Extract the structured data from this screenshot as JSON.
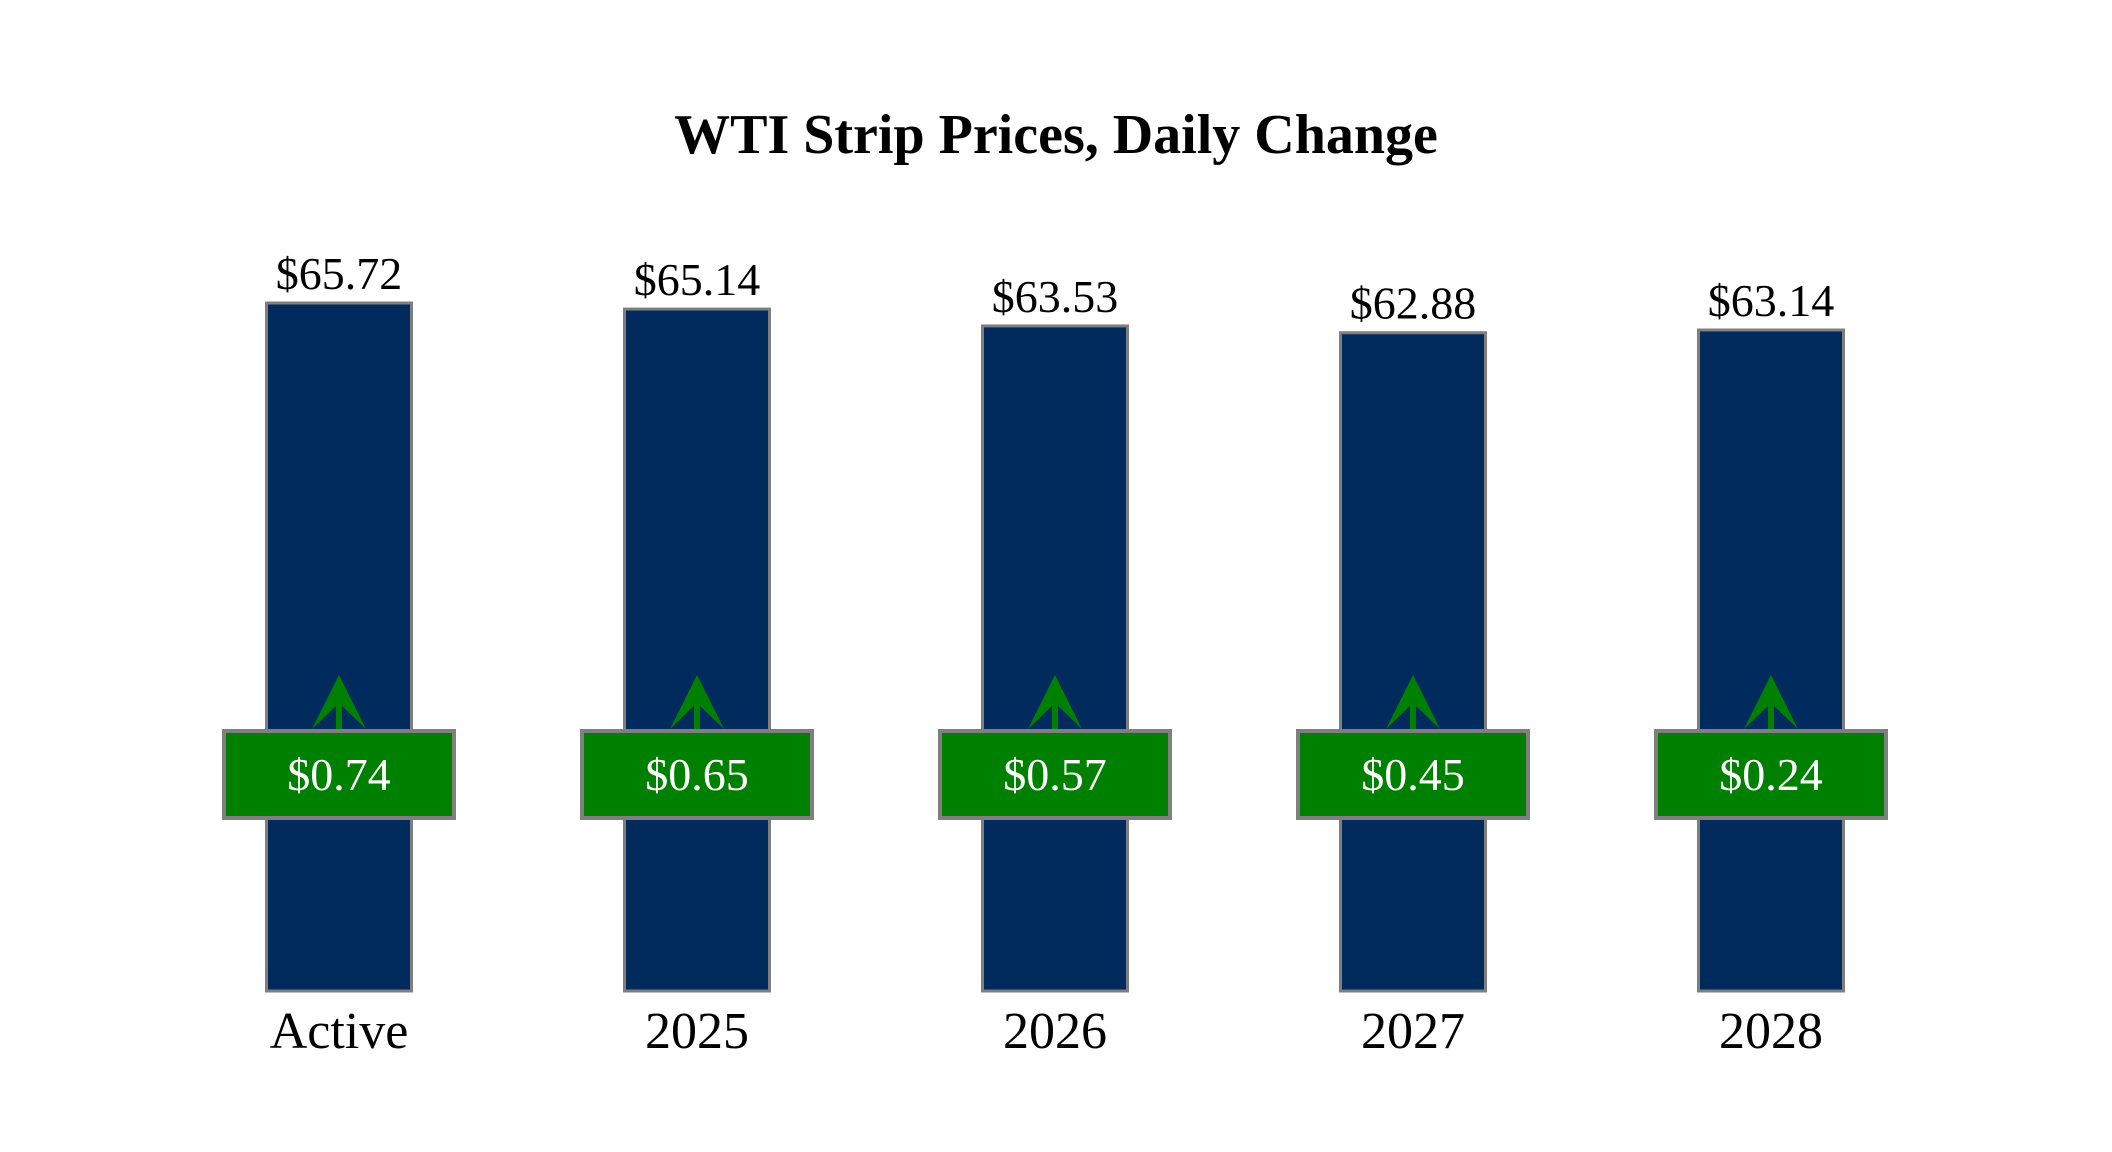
{
  "chart_data": {
    "type": "bar",
    "title": "WTI Strip Prices, Daily Change",
    "categories": [
      "Active",
      "2025",
      "2026",
      "2027",
      "2028"
    ],
    "values": [
      65.72,
      65.14,
      63.53,
      62.88,
      63.14
    ],
    "value_labels": [
      "$65.72",
      "$65.14",
      "$63.53",
      "$62.88",
      "$63.14"
    ],
    "changes": [
      0.74,
      0.65,
      0.57,
      0.45,
      0.24
    ],
    "change_labels": [
      "$0.74",
      "$0.65",
      "$0.57",
      "$0.45",
      "$0.24"
    ],
    "change_direction": [
      "up",
      "up",
      "up",
      "up",
      "up"
    ],
    "ylim": [
      0,
      65.72
    ],
    "xlabel": "",
    "ylabel": "",
    "grid": false,
    "colors": {
      "bar": "#002B5C",
      "bar_border": "#7F7F7F",
      "change_box": "#008000",
      "arrow": "#008000",
      "change_text": "#FFFFFF"
    }
  }
}
